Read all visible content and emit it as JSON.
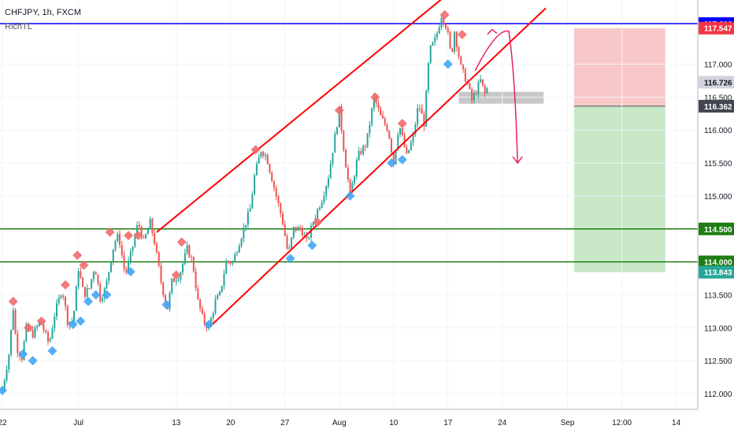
{
  "header": {
    "title": "CHFJPY, 1h, FXCM",
    "author": "RichTL"
  },
  "colors": {
    "up": "#26a69a",
    "down": "#ef5350",
    "bear_marker": "#ef6c6c",
    "bull_marker": "#42a5f5",
    "channel": "#ff0000",
    "level": "#1e7d14",
    "top_line": "#0000ff",
    "annotation": "#e91e63",
    "stop_zone": "#f8c8c8",
    "target_zone": "#c8e8c8",
    "box": "#c8c8c8"
  },
  "chart_data": {
    "type": "candlestick",
    "symbol": "CHFJPY",
    "timeframe": "1h",
    "source": "FXCM",
    "y_ticks": [
      112.0,
      112.5,
      113.0,
      113.5,
      114.0,
      114.5,
      115.0,
      115.5,
      116.0,
      116.5,
      117.0
    ],
    "y_tick_labels": [
      "112.000",
      "112.500",
      "113.000",
      "113.500",
      "114.000",
      "114.500",
      "115.000",
      "115.500",
      "116.000",
      "116.500",
      "117.000"
    ],
    "x_ticks": [
      {
        "label": "22",
        "t": 0
      },
      {
        "label": "Jul",
        "t": 7
      },
      {
        "label": "13",
        "t": 16
      },
      {
        "label": "20",
        "t": 21
      },
      {
        "label": "27",
        "t": 26
      },
      {
        "label": "Aug",
        "t": 31
      },
      {
        "label": "10",
        "t": 36
      },
      {
        "label": "17",
        "t": 41
      },
      {
        "label": "24",
        "t": 46
      },
      {
        "label": "Sep",
        "t": 52
      },
      {
        "label": "12:00",
        "t": 57
      },
      {
        "label": "14",
        "t": 62
      }
    ],
    "price_path": [
      [
        0,
        112.05
      ],
      [
        0.6,
        112.6
      ],
      [
        1.0,
        113.3
      ],
      [
        1.3,
        112.7
      ],
      [
        1.8,
        112.55
      ],
      [
        2.2,
        113.0
      ],
      [
        2.8,
        112.9
      ],
      [
        3.5,
        113.1
      ],
      [
        4.3,
        112.75
      ],
      [
        4.8,
        113.2
      ],
      [
        5.5,
        113.6
      ],
      [
        6.0,
        113.1
      ],
      [
        6.5,
        113.1
      ],
      [
        7.0,
        113.9
      ],
      [
        7.5,
        113.5
      ],
      [
        8.0,
        113.6
      ],
      [
        8.5,
        113.95
      ],
      [
        9.0,
        113.45
      ],
      [
        9.5,
        113.6
      ],
      [
        10.3,
        114.3
      ],
      [
        10.7,
        114.4
      ],
      [
        11.3,
        113.8
      ],
      [
        11.8,
        114.1
      ],
      [
        12.5,
        114.6
      ],
      [
        13.0,
        114.3
      ],
      [
        13.6,
        114.6
      ],
      [
        14.0,
        114.3
      ],
      [
        14.7,
        113.6
      ],
      [
        15.2,
        113.3
      ],
      [
        15.6,
        113.7
      ],
      [
        16.3,
        113.8
      ],
      [
        17.0,
        114.2
      ],
      [
        17.5,
        114.0
      ],
      [
        18.0,
        113.4
      ],
      [
        18.5,
        113.1
      ],
      [
        19.0,
        113.0
      ],
      [
        19.6,
        113.4
      ],
      [
        20.0,
        113.5
      ],
      [
        20.6,
        114.0
      ],
      [
        21.2,
        114.0
      ],
      [
        22.0,
        114.4
      ],
      [
        22.8,
        114.8
      ],
      [
        23.2,
        115.3
      ],
      [
        23.8,
        115.7
      ],
      [
        24.3,
        115.6
      ],
      [
        25.2,
        115.0
      ],
      [
        25.8,
        114.6
      ],
      [
        26.3,
        114.1
      ],
      [
        26.8,
        114.5
      ],
      [
        27.5,
        114.5
      ],
      [
        28.0,
        114.3
      ],
      [
        28.8,
        114.7
      ],
      [
        29.5,
        115.0
      ],
      [
        30.0,
        115.3
      ],
      [
        30.5,
        115.8
      ],
      [
        31.0,
        116.3
      ],
      [
        31.5,
        115.6
      ],
      [
        32.0,
        115.0
      ],
      [
        32.7,
        115.6
      ],
      [
        33.5,
        115.8
      ],
      [
        34.2,
        116.5
      ],
      [
        34.8,
        116.2
      ],
      [
        35.5,
        116.0
      ],
      [
        36.0,
        115.5
      ],
      [
        36.5,
        116.1
      ],
      [
        37.2,
        115.6
      ],
      [
        37.8,
        115.9
      ],
      [
        38.3,
        116.4
      ],
      [
        38.8,
        116.1
      ],
      [
        39.3,
        117.2
      ],
      [
        39.9,
        117.4
      ],
      [
        40.4,
        117.75
      ],
      [
        40.9,
        117.55
      ],
      [
        41.3,
        117.1
      ],
      [
        41.6,
        117.5
      ],
      [
        42.2,
        116.95
      ],
      [
        42.8,
        116.7
      ],
      [
        43.2,
        116.45
      ],
      [
        43.6,
        116.6
      ],
      [
        44.0,
        116.75
      ],
      [
        44.4,
        116.55
      ],
      [
        44.8,
        116.7
      ]
    ],
    "pattern_markers": {
      "bearish": [
        [
          1.0,
          113.4
        ],
        [
          2.4,
          113.0
        ],
        [
          3.6,
          113.1
        ],
        [
          5.8,
          113.65
        ],
        [
          6.9,
          114.1
        ],
        [
          7.5,
          113.95
        ],
        [
          9.9,
          114.45
        ],
        [
          11.6,
          114.4
        ],
        [
          12.5,
          114.4
        ],
        [
          16.0,
          113.8
        ],
        [
          16.5,
          114.3
        ],
        [
          23.3,
          115.7
        ],
        [
          29.0,
          114.6
        ],
        [
          31.0,
          116.3
        ],
        [
          34.3,
          116.5
        ],
        [
          36.8,
          116.1
        ],
        [
          40.7,
          117.75
        ],
        [
          42.3,
          117.45
        ]
      ],
      "bullish": [
        [
          0,
          112.05
        ],
        [
          1.9,
          112.6
        ],
        [
          2.8,
          112.5
        ],
        [
          4.6,
          112.65
        ],
        [
          6.5,
          113.05
        ],
        [
          7.2,
          113.1
        ],
        [
          7.9,
          113.4
        ],
        [
          8.6,
          113.5
        ],
        [
          9.6,
          113.5
        ],
        [
          11.8,
          113.85
        ],
        [
          15.1,
          113.35
        ],
        [
          19.0,
          113.05
        ],
        [
          26.5,
          114.05
        ],
        [
          28.5,
          114.25
        ],
        [
          32.0,
          115.0
        ],
        [
          35.8,
          115.5
        ],
        [
          36.8,
          115.55
        ],
        [
          41.0,
          117.0
        ]
      ]
    },
    "channel": {
      "upper": [
        [
          14.2,
          114.45
        ],
        [
          42.0,
          118.2
        ]
      ],
      "lower": [
        [
          19.0,
          113.0
        ],
        [
          50.0,
          117.85
        ]
      ]
    },
    "horizontal_levels": [
      {
        "price": 117.616,
        "label": "117.616",
        "role": "top"
      },
      {
        "price": 114.5,
        "label": "114.500",
        "role": "level"
      },
      {
        "price": 114.0,
        "label": "114.000",
        "role": "level"
      }
    ],
    "price_tags": [
      {
        "price": 117.616,
        "label": "117.616",
        "color": "#0000ff"
      },
      {
        "price": 117.547,
        "label": "117.547",
        "color": "#f23645"
      },
      {
        "price": 116.726,
        "label": "116.726",
        "color": "#d1d4dc",
        "text_color": "#131722"
      },
      {
        "price": 116.362,
        "label": "116.362",
        "color": "#434651"
      },
      {
        "price": 114.5,
        "label": "114.500",
        "color": "#1e7d14"
      },
      {
        "price": 114.0,
        "label": "114.000",
        "color": "#1e7d14"
      },
      {
        "price": 113.843,
        "label": "113.843",
        "color": "#26a69a"
      }
    ],
    "position": {
      "t_start": 52.6,
      "t_end": 61.0,
      "stop": 117.547,
      "entry": 116.362,
      "target": 113.843
    },
    "resistance_box": {
      "t_start": 42.0,
      "t_end": 49.8,
      "top": 116.58,
      "bottom": 116.4
    },
    "forecast_arrow": [
      [
        43.5,
        116.9
      ],
      [
        45.5,
        117.55
      ],
      [
        46.6,
        117.5
      ],
      [
        47.2,
        116.8
      ],
      [
        47.4,
        115.5
      ]
    ],
    "grid": true,
    "legend": "none"
  }
}
